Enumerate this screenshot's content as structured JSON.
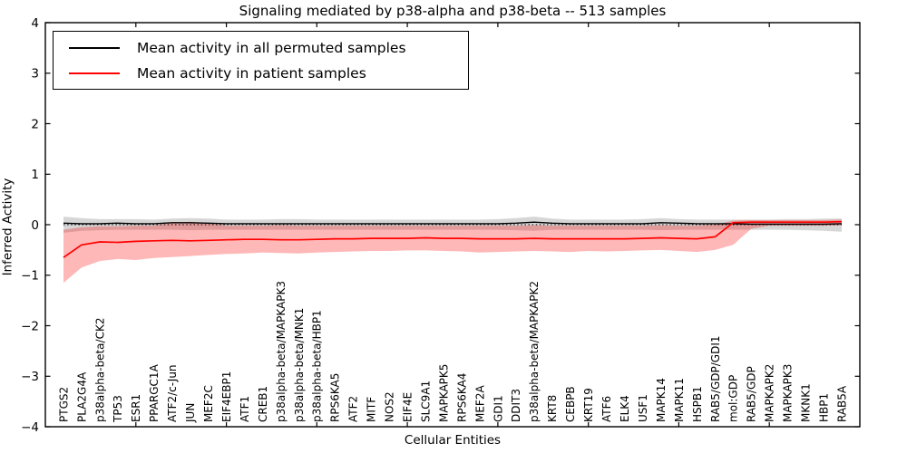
{
  "chart_data": {
    "type": "line",
    "title": "Signaling mediated by p38-alpha and p38-beta -- 513 samples",
    "xlabel": "Cellular Entities",
    "ylabel": "Inferred Activity",
    "ylim": [
      -4,
      4
    ],
    "yticks": [
      4,
      3,
      2,
      1,
      0,
      -1,
      -2,
      -3,
      -4
    ],
    "grid": false,
    "legend_position": "upper left",
    "zero_line": {
      "y": 0,
      "style": "dotted",
      "color": "#000000"
    },
    "categories": [
      "PTGS2",
      "PLA2G4A",
      "p38alpha-beta/CK2",
      "TP53",
      "ESR1",
      "PPARGC1A",
      "ATF2/c-Jun",
      "JUN",
      "MEF2C",
      "EIF4EBP1",
      "ATF1",
      "CREB1",
      "p38alpha-beta/MAPKAPK3",
      "p38alpha-beta/MNK1",
      "p38alpha-beta/HBP1",
      "RPS6KA5",
      "ATF2",
      "MITF",
      "NOS2",
      "EIF4E",
      "SLC9A1",
      "MAPKAPK5",
      "RPS6KA4",
      "MEF2A",
      "GDI1",
      "DDIT3",
      "p38alpha-beta/MAPKAPK2",
      "KRT8",
      "CEBPB",
      "KRT19",
      "ATF6",
      "ELK4",
      "USF1",
      "MAPK14",
      "MAPK11",
      "HSPB1",
      "RAB5/GDP/GDI1",
      "mol:GDP",
      "RAB5/GDP",
      "MAPKAPK2",
      "MAPKAPK3",
      "MKNK1",
      "HBP1",
      "RAB5A"
    ],
    "series": [
      {
        "name": "Mean activity in all permuted samples",
        "color": "#000000",
        "band_color": "#808080",
        "values": [
          0.03,
          0.02,
          0.02,
          0.03,
          0.02,
          0.02,
          0.04,
          0.04,
          0.03,
          0.02,
          0.02,
          0.02,
          0.02,
          0.02,
          0.02,
          0.02,
          0.02,
          0.02,
          0.02,
          0.02,
          0.02,
          0.02,
          0.02,
          0.02,
          0.02,
          0.03,
          0.05,
          0.03,
          0.02,
          0.02,
          0.02,
          0.02,
          0.02,
          0.04,
          0.03,
          0.02,
          0.02,
          0.02,
          0.01,
          0.01,
          0.01,
          0.01,
          0.01,
          0.02
        ],
        "band_hi": [
          0.16,
          0.13,
          0.11,
          0.11,
          0.11,
          0.1,
          0.12,
          0.13,
          0.12,
          0.1,
          0.1,
          0.1,
          0.11,
          0.11,
          0.1,
          0.1,
          0.1,
          0.1,
          0.1,
          0.1,
          0.1,
          0.1,
          0.1,
          0.1,
          0.11,
          0.13,
          0.16,
          0.12,
          0.1,
          0.1,
          0.1,
          0.1,
          0.11,
          0.13,
          0.11,
          0.1,
          0.1,
          0.1,
          0.1,
          0.1,
          0.11,
          0.11,
          0.12,
          0.12
        ],
        "band_lo": [
          -0.16,
          -0.12,
          -0.11,
          -0.1,
          -0.1,
          -0.1,
          -0.1,
          -0.11,
          -0.1,
          -0.1,
          -0.1,
          -0.1,
          -0.1,
          -0.1,
          -0.1,
          -0.1,
          -0.1,
          -0.1,
          -0.1,
          -0.1,
          -0.1,
          -0.1,
          -0.1,
          -0.1,
          -0.1,
          -0.11,
          -0.12,
          -0.1,
          -0.1,
          -0.1,
          -0.1,
          -0.1,
          -0.1,
          -0.11,
          -0.1,
          -0.1,
          -0.1,
          -0.1,
          -0.1,
          -0.1,
          -0.1,
          -0.11,
          -0.12,
          -0.14
        ]
      },
      {
        "name": "Mean activity in patient samples",
        "color": "#ff0000",
        "band_color": "#ff0000",
        "values": [
          -0.65,
          -0.4,
          -0.34,
          -0.35,
          -0.33,
          -0.32,
          -0.31,
          -0.32,
          -0.31,
          -0.3,
          -0.29,
          -0.29,
          -0.3,
          -0.3,
          -0.29,
          -0.28,
          -0.28,
          -0.27,
          -0.27,
          -0.27,
          -0.26,
          -0.27,
          -0.27,
          -0.28,
          -0.28,
          -0.28,
          -0.27,
          -0.28,
          -0.28,
          -0.28,
          -0.28,
          -0.28,
          -0.27,
          -0.26,
          -0.27,
          -0.28,
          -0.24,
          0.04,
          0.05,
          0.05,
          0.05,
          0.05,
          0.05,
          0.06
        ],
        "band_hi": [
          -0.1,
          -0.05,
          -0.03,
          -0.03,
          -0.02,
          -0.02,
          0.04,
          0.06,
          0.03,
          -0.02,
          -0.02,
          -0.02,
          -0.01,
          -0.02,
          -0.02,
          -0.02,
          -0.02,
          -0.02,
          -0.02,
          -0.02,
          -0.02,
          -0.02,
          -0.02,
          -0.02,
          -0.02,
          -0.02,
          -0.01,
          -0.02,
          -0.02,
          -0.02,
          -0.02,
          -0.02,
          -0.02,
          -0.01,
          -0.02,
          -0.02,
          0.0,
          0.08,
          0.09,
          0.09,
          0.09,
          0.09,
          0.09,
          0.1
        ],
        "band_lo": [
          -1.15,
          -0.85,
          -0.72,
          -0.68,
          -0.7,
          -0.66,
          -0.64,
          -0.62,
          -0.6,
          -0.58,
          -0.57,
          -0.55,
          -0.56,
          -0.57,
          -0.55,
          -0.54,
          -0.53,
          -0.52,
          -0.52,
          -0.51,
          -0.51,
          -0.52,
          -0.53,
          -0.55,
          -0.54,
          -0.53,
          -0.52,
          -0.53,
          -0.54,
          -0.52,
          -0.53,
          -0.52,
          -0.51,
          -0.5,
          -0.52,
          -0.54,
          -0.5,
          -0.4,
          -0.08,
          -0.02,
          -0.02,
          -0.02,
          -0.02,
          -0.01
        ]
      }
    ]
  }
}
